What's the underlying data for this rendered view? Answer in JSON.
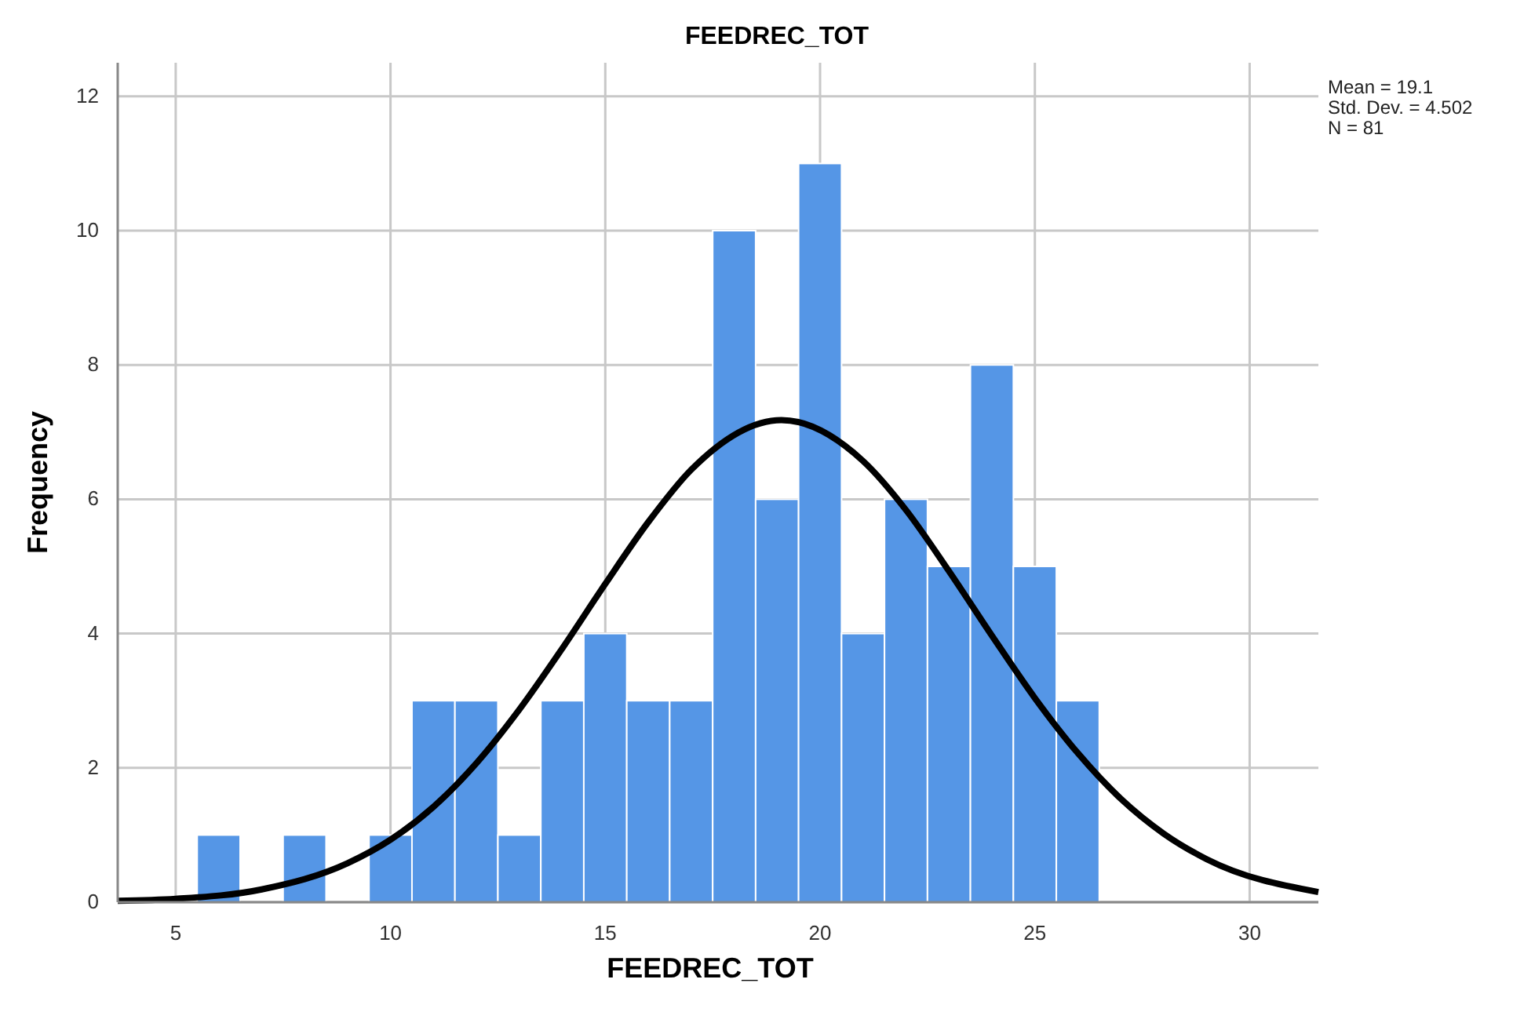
{
  "chart_data": {
    "type": "histogram",
    "title": "FEEDREC_TOT",
    "xlabel": "FEEDREC_TOT",
    "ylabel": "Frequency",
    "bins": [
      5.5,
      6.5,
      7.5,
      8.5,
      9.5,
      10.5,
      11.5,
      12.5,
      13.5,
      14.5,
      15.5,
      16.5,
      17.5,
      18.5,
      19.5,
      20.5,
      21.5,
      22.5,
      23.5,
      24.5,
      25.5,
      26.5
    ],
    "values": [
      1,
      0,
      1,
      0,
      1,
      3,
      3,
      1,
      3,
      4,
      3,
      3,
      10,
      6,
      11,
      4,
      6,
      5,
      8,
      5,
      3
    ],
    "color": "#5596e6",
    "series": [
      {
        "type": "line",
        "color": "#000000",
        "x": [
          3.65,
          5,
          7,
          9,
          10,
          11,
          12,
          13,
          14,
          15,
          16,
          17,
          19.1,
          21,
          22,
          23,
          24,
          25,
          26,
          27,
          28,
          29,
          31.6
        ],
        "values": [
          0.02,
          0.05,
          0.19,
          0.58,
          0.93,
          1.42,
          2.07,
          2.87,
          3.78,
          4.74,
          5.66,
          6.44,
          7.18,
          6.57,
          5.84,
          4.93,
          3.97,
          3.04,
          2.22,
          1.54,
          1.02,
          0.64,
          0.15
        ]
      }
    ],
    "marker": "none",
    "line_style": "solid",
    "xlim": [
      3.65,
      31.6
    ],
    "xticks": [
      5,
      10,
      15,
      20,
      25,
      30
    ],
    "ylim": [
      0,
      12.5
    ],
    "yticks": [
      0,
      2,
      4,
      6,
      8,
      10,
      12
    ],
    "grid": true,
    "annotations": [
      "Mean = 19.1",
      "Std. Dev. = 4.502",
      "N = 81"
    ]
  }
}
